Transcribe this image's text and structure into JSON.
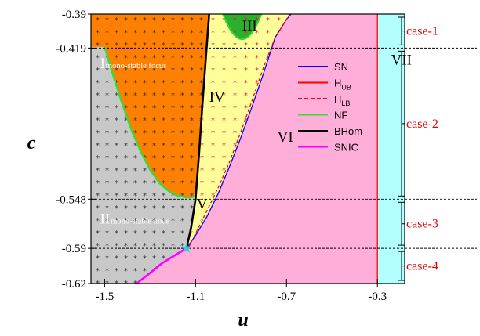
{
  "chart_data": {
    "type": "bifurcation-diagram",
    "xlabel": "u",
    "ylabel": "c",
    "xlim": [
      -1.56,
      -0.18
    ],
    "ylim": [
      -0.62,
      -0.39
    ],
    "x_ticks": [
      {
        "value": -1.5,
        "label": "-1.5"
      },
      {
        "value": -1.1,
        "label": "-1.1"
      },
      {
        "value": -0.7,
        "label": "-0.7"
      },
      {
        "value": -0.3,
        "label": "-0.3"
      }
    ],
    "y_ticks": [
      {
        "value": -0.39,
        "label": "-0.39"
      },
      {
        "value": -0.419,
        "label": "-0.419"
      },
      {
        "value": -0.548,
        "label": "-0.548"
      },
      {
        "value": -0.59,
        "label": "-0.59"
      },
      {
        "value": -0.62,
        "label": "-0.62"
      }
    ],
    "dashed_levels": [
      -0.419,
      -0.548,
      -0.59
    ],
    "regions": [
      {
        "id": "I",
        "label": "I",
        "sublabel": "mono-stable focus",
        "anchor": [
          -1.52,
          -0.436
        ],
        "color": "#ff7f00"
      },
      {
        "id": "II",
        "label": "II",
        "sublabel": "mono-stable node",
        "anchor": [
          -1.52,
          -0.569
        ],
        "color": "#c8c8c8"
      },
      {
        "id": "III",
        "label": "III",
        "anchor": [
          -0.895,
          -0.404
        ],
        "color": "#2ab02a"
      },
      {
        "id": "IV",
        "label": "IV",
        "anchor": [
          -1.04,
          -0.465
        ],
        "color": "#ffff99"
      },
      {
        "id": "V",
        "label": "V",
        "anchor": [
          -1.095,
          -0.556
        ],
        "color": "#ffaed9"
      },
      {
        "id": "VI",
        "label": "VI",
        "anchor": [
          -0.74,
          -0.499
        ],
        "color": "#ffaed9"
      },
      {
        "id": "VII",
        "label": "VII",
        "anchor": [
          -0.24,
          -0.433
        ],
        "color": "#b3ffff"
      }
    ],
    "series": [
      {
        "name": "SN",
        "color": "#0000ff",
        "style": "solid",
        "x": [
          -1.14,
          -1.1,
          -1.05,
          -1.0,
          -0.95,
          -0.9,
          -0.85,
          -0.8,
          -0.75,
          -0.7,
          -0.68
        ],
        "y": [
          -0.59,
          -0.579,
          -0.563,
          -0.543,
          -0.52,
          -0.495,
          -0.468,
          -0.44,
          -0.41,
          -0.3945,
          -0.39
        ]
      },
      {
        "name": "H_UB",
        "color": "#ff0000",
        "style": "solid",
        "x": [
          -0.3,
          -0.3
        ],
        "y": [
          -0.39,
          -0.62
        ]
      },
      {
        "name": "H_LB",
        "color": "#ff0000",
        "style": "dashed",
        "x": [
          -1.13,
          -1.05,
          -1.0,
          -0.95,
          -0.9,
          -0.85,
          -0.8,
          -0.75,
          -0.7,
          -0.685
        ],
        "y": [
          -0.589,
          -0.558,
          -0.538,
          -0.516,
          -0.49,
          -0.463,
          -0.435,
          -0.41,
          -0.3945,
          -0.39
        ]
      },
      {
        "name": "NF",
        "color": "#33dd33",
        "style": "solid",
        "x": [
          -1.5,
          -1.46,
          -1.42,
          -1.38,
          -1.34,
          -1.3,
          -1.26,
          -1.22,
          -1.18,
          -1.14,
          -1.12,
          -1.1
        ],
        "y": [
          -0.418,
          -0.444,
          -0.468,
          -0.49,
          -0.508,
          -0.523,
          -0.534,
          -0.541,
          -0.545,
          -0.5465,
          -0.5465,
          -0.5455
        ]
      },
      {
        "name": "BHom",
        "color": "#000000",
        "style": "solid",
        "x": [
          -1.14,
          -1.12,
          -1.1,
          -1.085,
          -1.07,
          -1.055,
          -1.04
        ],
        "y": [
          -0.59,
          -0.573,
          -0.548,
          -0.51,
          -0.468,
          -0.428,
          -0.39
        ]
      },
      {
        "name": "SNIC",
        "color": "#ff00ff",
        "style": "solid",
        "x": [
          -1.36,
          -1.3,
          -1.25,
          -1.2,
          -1.14
        ],
        "y": [
          -0.62,
          -0.611,
          -0.603,
          -0.597,
          -0.59
        ]
      }
    ],
    "special_point": {
      "x": -1.14,
      "y": -0.59,
      "marker": "star",
      "color": "#33ccdd"
    },
    "legend": {
      "placement": "right-inside",
      "entries": [
        {
          "key": "SN",
          "main": "SN",
          "sub": "",
          "color": "#0000ff",
          "style": "solid"
        },
        {
          "key": "H_UB",
          "main": "H",
          "sub": "UB",
          "color": "#ff0000",
          "style": "solid"
        },
        {
          "key": "H_LB",
          "main": "H",
          "sub": "LB",
          "color": "#ff0000",
          "style": "dashed"
        },
        {
          "key": "NF",
          "main": "NF",
          "sub": "",
          "color": "#33dd33",
          "style": "solid"
        },
        {
          "key": "BHom",
          "main": "BHom",
          "sub": "",
          "color": "#000000",
          "style": "solid"
        },
        {
          "key": "SNIC",
          "main": "SNIC",
          "sub": "",
          "color": "#ff00ff",
          "style": "solid"
        }
      ]
    },
    "cases": [
      {
        "label": "case-1",
        "from": -0.39,
        "to": -0.419
      },
      {
        "label": "case-2",
        "from": -0.419,
        "to": -0.548
      },
      {
        "label": "case-3",
        "from": -0.548,
        "to": -0.59
      },
      {
        "label": "case-4",
        "from": -0.59,
        "to": -0.62
      }
    ],
    "grid": false
  }
}
